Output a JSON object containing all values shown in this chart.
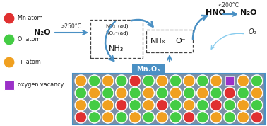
{
  "bg_color": "#ffffff",
  "surface_color": "#7a8fa8",
  "surface_border": "#4a90c4",
  "mn2o3_box_color": "#4a90c4",
  "mn2o3_box_text": "Mn₂O₃",
  "arrow_color": "#4a90c4",
  "legend_items": [
    {
      "label": "Mn atom",
      "color": "#e03030",
      "shape": "circle"
    },
    {
      "label": "O  atom",
      "color": "#44cc44",
      "shape": "circle"
    },
    {
      "label": "Ti  atom",
      "color": "#f0a020",
      "shape": "circle"
    },
    {
      "label": "oxygen vacancy",
      "color": "#9b30c8",
      "shape": "square"
    }
  ],
  "atom_colors": {
    "O": "#44cc44",
    "Ti": "#f0a020",
    "Mn": "#e03030",
    "V": "#9b30c8"
  },
  "n_cols": 14,
  "n_rows": 4,
  "grid_pattern": [
    [
      "Ti",
      "O",
      "Ti",
      "O",
      "Mn",
      "O",
      "Ti",
      "O",
      "Ti",
      "O",
      "Ti",
      "V",
      "Ti",
      "O"
    ],
    [
      "O",
      "Ti",
      "O",
      "Ti",
      "O",
      "Ti",
      "O",
      "Ti",
      "O",
      "Ti",
      "O",
      "Mn",
      "O",
      "Ti"
    ],
    [
      "Ti",
      "O",
      "Ti",
      "Mn",
      "O",
      "Ti",
      "Mn",
      "O",
      "Ti",
      "O",
      "Mn",
      "O",
      "Ti",
      "O"
    ],
    [
      "Mn",
      "O",
      "Ti",
      "O",
      "Ti",
      "O",
      "Ti",
      "O",
      "Mn",
      "O",
      "Ti",
      "O",
      "Ti",
      "Mn"
    ]
  ],
  "text_color": "#1a1a1a",
  "temp_left": ">250°C",
  "temp_right": "<200°C",
  "n2o_left": "N₂O",
  "n2o_right": "N₂O",
  "hno": "HNO",
  "nh3": "NH₃",
  "nhx": "NHₓ",
  "ominus": "O⁻",
  "no3": "NO₃⁻(ad)",
  "no2": "NO₂⁻(ad)",
  "o2": "O₂"
}
